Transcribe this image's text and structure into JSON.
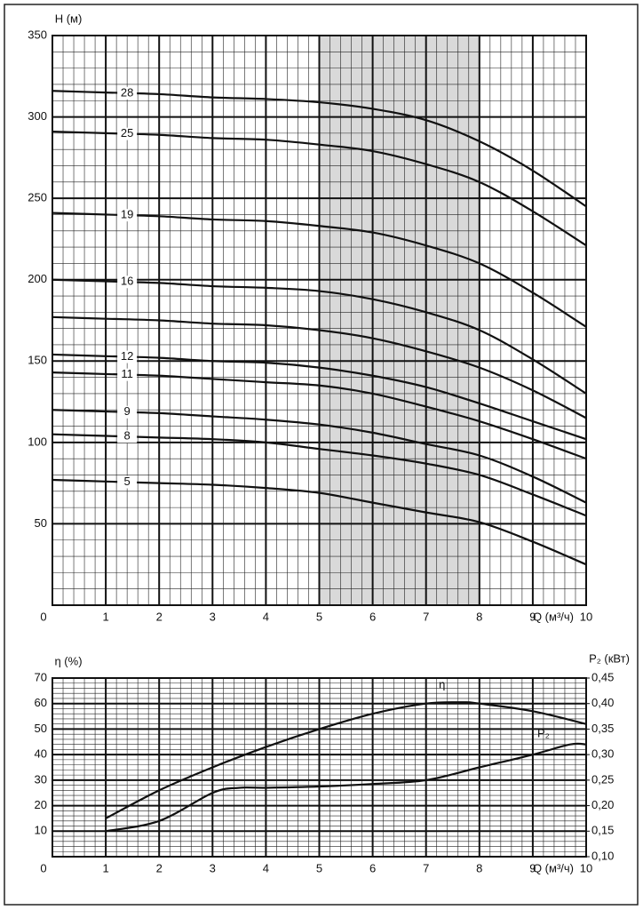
{
  "chart_data": [
    {
      "type": "line",
      "x_label": "Q (м³/ч)",
      "y_label": "H (м)",
      "xlim": [
        0,
        10
      ],
      "xticks": [
        0,
        1,
        2,
        3,
        4,
        5,
        6,
        7,
        8,
        9,
        10
      ],
      "ylim": [
        0,
        350
      ],
      "yticks": [
        50,
        100,
        150,
        200,
        250,
        300,
        350
      ],
      "grid": true,
      "minor_grid": {
        "x": 5,
        "y": 5
      },
      "shaded_x": [
        5,
        8
      ],
      "shade_color": "#d9d9d9",
      "x": [
        0,
        1,
        2,
        3,
        4,
        5,
        6,
        7,
        8,
        9,
        10
      ],
      "series": [
        {
          "name": "28",
          "color": "#111111",
          "values": [
            316,
            315,
            314,
            312,
            311,
            309,
            305,
            298,
            285,
            267,
            245
          ]
        },
        {
          "name": "25",
          "color": "#111111",
          "values": [
            291,
            290,
            289,
            287,
            286,
            283,
            279,
            271,
            260,
            242,
            221
          ]
        },
        {
          "name": "19",
          "color": "#111111",
          "values": [
            241,
            240,
            239,
            237,
            236,
            233,
            229,
            221,
            210,
            192,
            171
          ]
        },
        {
          "name": "16",
          "color": "#111111",
          "values": [
            200,
            199,
            198,
            196,
            195,
            193,
            188,
            180,
            169,
            151,
            130
          ]
        },
        {
          "color": "#111111",
          "values": [
            177,
            176,
            175,
            173,
            172,
            169,
            164,
            156,
            146,
            132,
            115
          ]
        },
        {
          "name": "12",
          "color": "#111111",
          "values": [
            154,
            153,
            152,
            150,
            149,
            146,
            141,
            134,
            124,
            113,
            102
          ]
        },
        {
          "name": "11",
          "color": "#111111",
          "values": [
            143,
            142,
            141,
            139,
            137,
            135,
            130,
            122,
            113,
            102,
            90
          ]
        },
        {
          "name": "9",
          "color": "#111111",
          "values": [
            120,
            119,
            118,
            116,
            114,
            111,
            106,
            99,
            92,
            79,
            63
          ]
        },
        {
          "name": "8",
          "color": "#111111",
          "values": [
            105,
            104,
            103,
            102,
            100,
            96,
            92,
            87,
            80,
            68,
            55
          ]
        },
        {
          "name": "5",
          "color": "#111111",
          "values": [
            77,
            76,
            75,
            74,
            72,
            69,
            63,
            57,
            51,
            39,
            25
          ]
        }
      ]
    },
    {
      "type": "line",
      "x_label": "Q (м³/ч)",
      "y_label": "η (%)",
      "y2_label": "P₂ (кВт)",
      "xlim": [
        0,
        10
      ],
      "xticks": [
        0,
        1,
        2,
        3,
        4,
        5,
        6,
        7,
        8,
        9,
        10
      ],
      "ylim": [
        0,
        70
      ],
      "yticks": [
        10,
        20,
        30,
        40,
        50,
        60,
        70
      ],
      "y2lim": [
        0.1,
        0.45
      ],
      "y2ticks": [
        {
          "value": 0.1,
          "label": "0,10"
        },
        {
          "value": 0.15,
          "label": "0,15"
        },
        {
          "value": 0.2,
          "label": "0,20"
        },
        {
          "value": 0.25,
          "label": "0,25"
        },
        {
          "value": 0.3,
          "label": "0,30"
        },
        {
          "value": 0.35,
          "label": "0,35"
        },
        {
          "value": 0.4,
          "label": "0,40"
        },
        {
          "value": 0.45,
          "label": "0,45"
        }
      ],
      "grid": true,
      "minor_grid": {
        "x": 5,
        "y": 5
      },
      "series": [
        {
          "name": "η",
          "color": "#111111",
          "x": [
            1,
            2,
            3,
            4,
            5,
            6,
            7,
            7.7,
            8,
            9,
            10
          ],
          "values": [
            15,
            26,
            35,
            43,
            50,
            56,
            60,
            60.5,
            60,
            57,
            52
          ]
        },
        {
          "name": "P₂",
          "color": "#111111",
          "axis": "y2",
          "x": [
            1,
            2,
            3,
            3.5,
            4,
            5,
            6,
            7,
            8,
            9,
            9.7,
            10
          ],
          "values": [
            0.15,
            0.17,
            0.225,
            0.235,
            0.235,
            0.2375,
            0.2425,
            0.25,
            0.275,
            0.3,
            0.32,
            0.32
          ]
        }
      ]
    }
  ]
}
